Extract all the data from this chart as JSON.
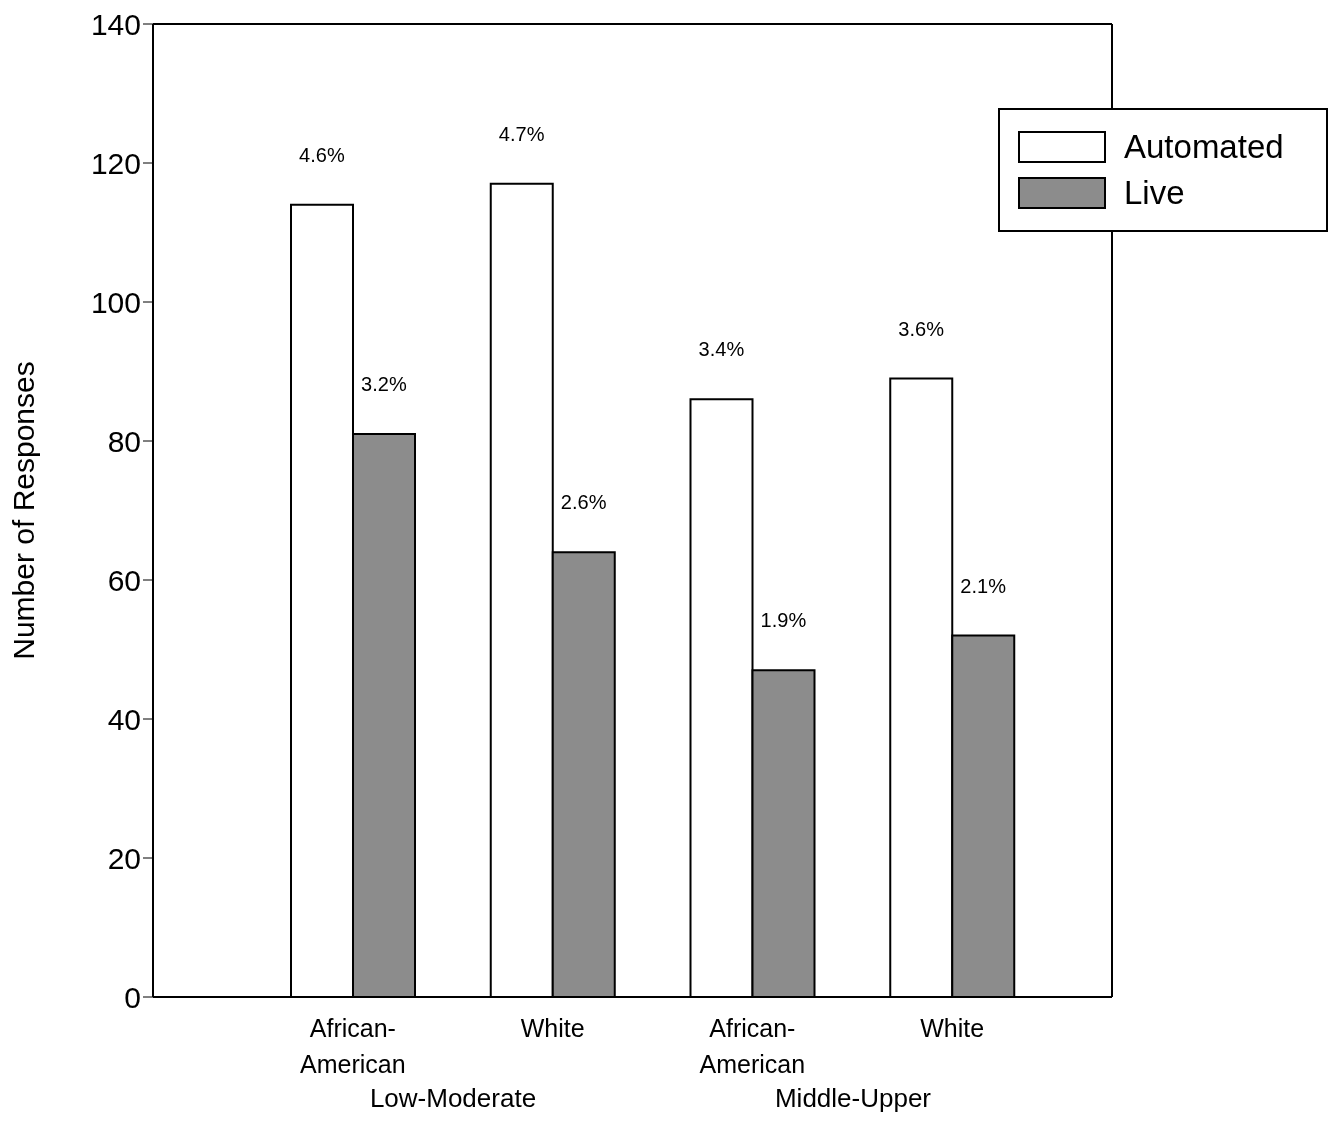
{
  "chart_data": {
    "type": "bar",
    "ylabel": "Number of Responses",
    "categories": [
      "African-American",
      "White",
      "African-American",
      "White"
    ],
    "series": [
      {
        "name": "Automated",
        "color": "#ffffff",
        "values": [
          114,
          117,
          86,
          89
        ]
      },
      {
        "name": "Live",
        "color": "#8c8c8c",
        "values": [
          81,
          64,
          47,
          52
        ]
      }
    ],
    "annotations": [
      "Low-Moderate",
      "Middle-Upper",
      {
        "text": "4.6%",
        "x": "African-American",
        "y": 114
      },
      {
        "text": "3.2%",
        "x": "African-American",
        "y": 81
      },
      {
        "text": "4.7%",
        "x": "White",
        "y": 117
      },
      {
        "text": "2.6%",
        "x": "White",
        "y": 64
      },
      {
        "text": "3.4%",
        "y": 86
      },
      {
        "text": "1.9%",
        "y": 47
      },
      {
        "text": "3.6%",
        "y": 89
      },
      {
        "text": "2.1%",
        "y": 52
      }
    ],
    "ylim": [
      0,
      140
    ],
    "yticks": [
      0,
      20,
      40,
      60,
      80,
      100,
      120,
      140
    ],
    "legend": "top right"
  }
}
